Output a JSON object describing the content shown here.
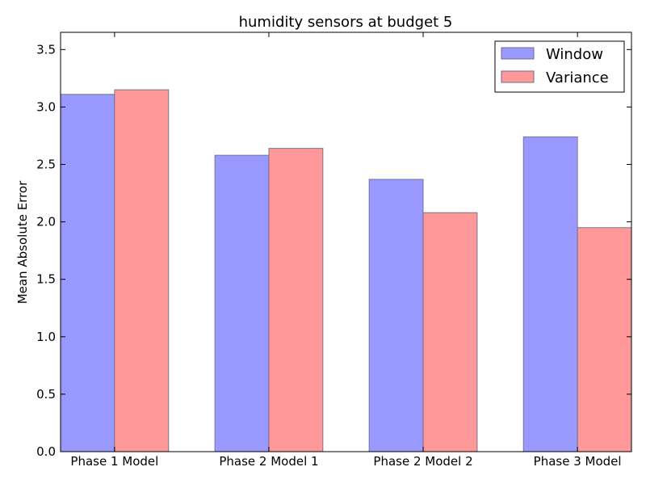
{
  "chart_data": {
    "type": "bar",
    "title": "humidity sensors at budget 5",
    "xlabel": "",
    "ylabel": "Mean Absolute Error",
    "categories": [
      "Phase 1 Model",
      "Phase 2 Model 1",
      "Phase 2 Model 2",
      "Phase 3 Model"
    ],
    "series": [
      {
        "name": "Window",
        "values": [
          3.11,
          2.58,
          2.37,
          2.74
        ],
        "color": "#9999ff"
      },
      {
        "name": "Variance",
        "values": [
          3.15,
          2.64,
          2.08,
          1.95
        ],
        "color": "#ff9999"
      }
    ],
    "ylim": [
      0,
      3.65
    ],
    "yticks": [
      "0.0",
      "0.5",
      "1.0",
      "1.5",
      "2.0",
      "2.5",
      "3.0",
      "3.5"
    ],
    "grid": false,
    "legend_position": "top-right"
  }
}
